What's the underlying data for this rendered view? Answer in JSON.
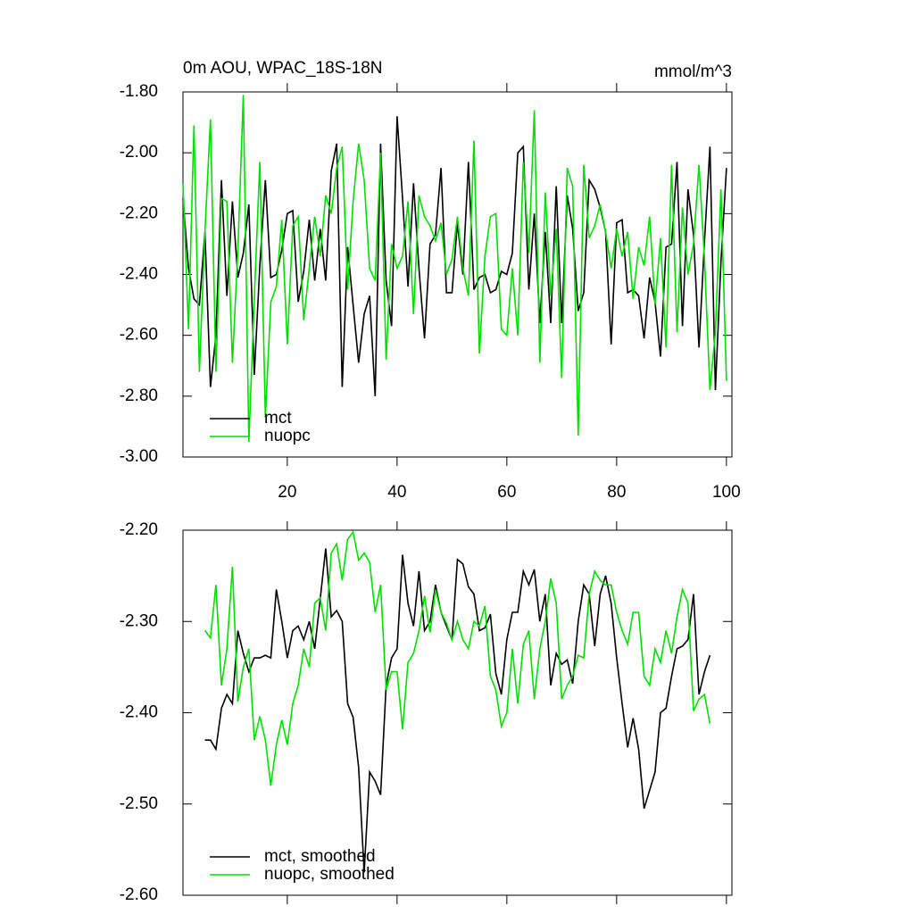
{
  "chart_data": [
    {
      "type": "line",
      "title": "0m AOU, WPAC_18S-18N",
      "subtitle": "mmol/m^3",
      "legend": "lower-left",
      "x": [
        1,
        2,
        3,
        4,
        5,
        6,
        7,
        8,
        9,
        10,
        11,
        12,
        13,
        14,
        15,
        16,
        17,
        18,
        19,
        20,
        21,
        22,
        23,
        24,
        25,
        26,
        27,
        28,
        29,
        30,
        31,
        32,
        33,
        34,
        35,
        36,
        37,
        38,
        39,
        40,
        41,
        42,
        43,
        44,
        45,
        46,
        47,
        48,
        49,
        50,
        51,
        52,
        53,
        54,
        55,
        56,
        57,
        58,
        59,
        60,
        61,
        62,
        63,
        64,
        65,
        66,
        67,
        68,
        69,
        70,
        71,
        72,
        73,
        74,
        75,
        76,
        77,
        78,
        79,
        80,
        81,
        82,
        83,
        84,
        85,
        86,
        87,
        88,
        89,
        90,
        91,
        92,
        93,
        94,
        95,
        96,
        97,
        98,
        99,
        100
      ],
      "xlim": [
        1,
        101
      ],
      "xticks": [
        20,
        40,
        60,
        80,
        100
      ],
      "ylim": [
        -3.0,
        -1.8
      ],
      "yticks": [
        {
          "value": -3.0,
          "label": "-3.00"
        },
        {
          "value": -2.8,
          "label": "-2.80"
        },
        {
          "value": -2.6,
          "label": "-2.60"
        },
        {
          "value": -2.4,
          "label": "-2.40"
        },
        {
          "value": -2.2,
          "label": "-2.20"
        },
        {
          "value": -2.0,
          "label": "-2.00"
        },
        {
          "value": -1.8,
          "label": "-1.80"
        }
      ],
      "series": [
        {
          "name": "mct",
          "color": "#000000",
          "values": [
            -2.15,
            -2.38,
            -2.48,
            -2.5,
            -2.26,
            -2.77,
            -2.6,
            -2.09,
            -2.47,
            -2.16,
            -2.41,
            -2.33,
            -2.17,
            -2.73,
            -2.37,
            -2.09,
            -2.41,
            -2.4,
            -2.32,
            -2.2,
            -2.19,
            -2.49,
            -2.39,
            -2.22,
            -2.42,
            -2.25,
            -2.42,
            -2.06,
            -1.97,
            -2.77,
            -2.31,
            -2.5,
            -2.69,
            -2.53,
            -2.47,
            -2.8,
            -1.97,
            -2.42,
            -2.57,
            -1.88,
            -2.15,
            -2.44,
            -2.1,
            -2.38,
            -2.61,
            -2.3,
            -2.27,
            -2.05,
            -2.46,
            -2.46,
            -2.23,
            -2.4,
            -2.03,
            -2.45,
            -2.41,
            -2.4,
            -2.46,
            -2.45,
            -2.39,
            -2.4,
            -2.33,
            -2.0,
            -1.98,
            -2.45,
            -2.2,
            -2.56,
            -2.26,
            -2.56,
            -2.11,
            -2.56,
            -2.14,
            -2.25,
            -2.52,
            -2.46,
            -2.09,
            -2.12,
            -2.18,
            -2.26,
            -2.63,
            -2.23,
            -2.22,
            -2.46,
            -2.45,
            -2.47,
            -2.61,
            -2.41,
            -2.49,
            -2.67,
            -2.31,
            -2.3,
            -2.03,
            -2.57,
            -2.12,
            -2.27,
            -2.64,
            -2.29,
            -1.98,
            -2.78,
            -2.36,
            -2.05
          ]
        },
        {
          "name": "nuopc",
          "color": "#00e000",
          "values": [
            -2.1,
            -2.58,
            -1.91,
            -2.72,
            -2.26,
            -1.89,
            -2.72,
            -2.15,
            -2.16,
            -2.69,
            -2.32,
            -1.81,
            -2.95,
            -2.48,
            -2.03,
            -2.87,
            -2.49,
            -2.44,
            -2.22,
            -2.63,
            -2.24,
            -2.21,
            -2.55,
            -2.38,
            -2.21,
            -2.34,
            -2.14,
            -2.2,
            -2.05,
            -1.98,
            -2.45,
            -2.16,
            -1.97,
            -2.09,
            -2.38,
            -2.42,
            -2.0,
            -2.68,
            -2.3,
            -2.38,
            -2.34,
            -2.16,
            -2.53,
            -2.14,
            -2.21,
            -2.24,
            -2.29,
            -2.23,
            -2.4,
            -2.35,
            -2.21,
            -2.38,
            -2.47,
            -1.96,
            -2.66,
            -2.34,
            -2.21,
            -2.2,
            -2.58,
            -2.6,
            -2.38,
            -2.6,
            -2.03,
            -2.33,
            -1.86,
            -2.69,
            -2.13,
            -2.47,
            -2.25,
            -2.74,
            -2.05,
            -2.11,
            -2.93,
            -2.04,
            -2.28,
            -2.24,
            -2.17,
            -2.26,
            -2.38,
            -2.25,
            -2.34,
            -2.26,
            -2.48,
            -2.31,
            -2.37,
            -2.21,
            -2.5,
            -2.28,
            -2.64,
            -2.04,
            -2.59,
            -2.18,
            -2.4,
            -2.3,
            -2.04,
            -2.35,
            -2.78,
            -2.59,
            -2.12,
            -2.75
          ]
        }
      ]
    },
    {
      "type": "line",
      "legend": "lower-left",
      "x": [
        5,
        6,
        7,
        8,
        9,
        10,
        11,
        12,
        13,
        14,
        15,
        16,
        17,
        18,
        19,
        20,
        21,
        22,
        23,
        24,
        25,
        26,
        27,
        28,
        29,
        30,
        31,
        32,
        33,
        34,
        35,
        36,
        37,
        38,
        39,
        40,
        41,
        42,
        43,
        44,
        45,
        46,
        47,
        48,
        49,
        50,
        51,
        52,
        53,
        54,
        55,
        56,
        57,
        58,
        59,
        60,
        61,
        62,
        63,
        64,
        65,
        66,
        67,
        68,
        69,
        70,
        71,
        72,
        73,
        74,
        75,
        76,
        77,
        78,
        79,
        80,
        81,
        82,
        83,
        84,
        85,
        86,
        87,
        88,
        89,
        90,
        91,
        92,
        93,
        94,
        95,
        96,
        97
      ],
      "xlim": [
        1,
        101
      ],
      "xticks": [
        20,
        40,
        60,
        80,
        100
      ],
      "ylim": [
        -2.6,
        -2.2
      ],
      "yticks": [
        {
          "value": -2.6,
          "label": "-2.60"
        },
        {
          "value": -2.5,
          "label": "-2.50"
        },
        {
          "value": -2.4,
          "label": "-2.40"
        },
        {
          "value": -2.3,
          "label": "-2.30"
        },
        {
          "value": -2.2,
          "label": "-2.20"
        }
      ],
      "series": [
        {
          "name": "mct, smoothed",
          "color": "#000000",
          "values": [
            -2.43,
            -2.43,
            -2.44,
            -2.395,
            -2.38,
            -2.39,
            -2.31,
            -2.335,
            -2.355,
            -2.34,
            -2.34,
            -2.337,
            -2.34,
            -2.265,
            -2.3,
            -2.34,
            -2.31,
            -2.305,
            -2.32,
            -2.3,
            -2.33,
            -2.275,
            -2.22,
            -2.295,
            -2.288,
            -2.3,
            -2.39,
            -2.405,
            -2.46,
            -2.575,
            -2.465,
            -2.475,
            -2.49,
            -2.37,
            -2.34,
            -2.33,
            -2.227,
            -2.28,
            -2.305,
            -2.245,
            -2.31,
            -2.3,
            -2.26,
            -2.29,
            -2.305,
            -2.32,
            -2.232,
            -2.237,
            -2.262,
            -2.27,
            -2.31,
            -2.307,
            -2.292,
            -2.357,
            -2.38,
            -2.32,
            -2.29,
            -2.29,
            -2.245,
            -2.26,
            -2.243,
            -2.3,
            -2.27,
            -2.37,
            -2.335,
            -2.347,
            -2.342,
            -2.368,
            -2.3,
            -2.26,
            -2.27,
            -2.327,
            -2.27,
            -2.25,
            -2.28,
            -2.34,
            -2.39,
            -2.438,
            -2.406,
            -2.44,
            -2.505,
            -2.485,
            -2.465,
            -2.4,
            -2.395,
            -2.36,
            -2.33,
            -2.327,
            -2.32,
            -2.27,
            -2.38,
            -2.355,
            -2.337
          ]
        },
        {
          "name": "nuopc, smoothed",
          "color": "#00e000",
          "values": [
            -2.31,
            -2.318,
            -2.26,
            -2.37,
            -2.33,
            -2.24,
            -2.388,
            -2.35,
            -2.33,
            -2.43,
            -2.404,
            -2.43,
            -2.48,
            -2.435,
            -2.408,
            -2.435,
            -2.39,
            -2.37,
            -2.33,
            -2.35,
            -2.28,
            -2.274,
            -2.31,
            -2.225,
            -2.215,
            -2.255,
            -2.21,
            -2.202,
            -2.233,
            -2.225,
            -2.235,
            -2.29,
            -2.26,
            -2.375,
            -2.355,
            -2.355,
            -2.418,
            -2.345,
            -2.335,
            -2.31,
            -2.272,
            -2.312,
            -2.265,
            -2.29,
            -2.302,
            -2.32,
            -2.3,
            -2.32,
            -2.33,
            -2.3,
            -2.305,
            -2.283,
            -2.36,
            -2.375,
            -2.415,
            -2.4,
            -2.33,
            -2.39,
            -2.325,
            -2.31,
            -2.385,
            -2.33,
            -2.3,
            -2.253,
            -2.28,
            -2.385,
            -2.37,
            -2.36,
            -2.337,
            -2.34,
            -2.27,
            -2.245,
            -2.255,
            -2.26,
            -2.26,
            -2.29,
            -2.31,
            -2.325,
            -2.29,
            -2.29,
            -2.36,
            -2.37,
            -2.33,
            -2.345,
            -2.31,
            -2.335,
            -2.295,
            -2.265,
            -2.28,
            -2.398,
            -2.385,
            -2.38,
            -2.412
          ]
        }
      ]
    }
  ]
}
